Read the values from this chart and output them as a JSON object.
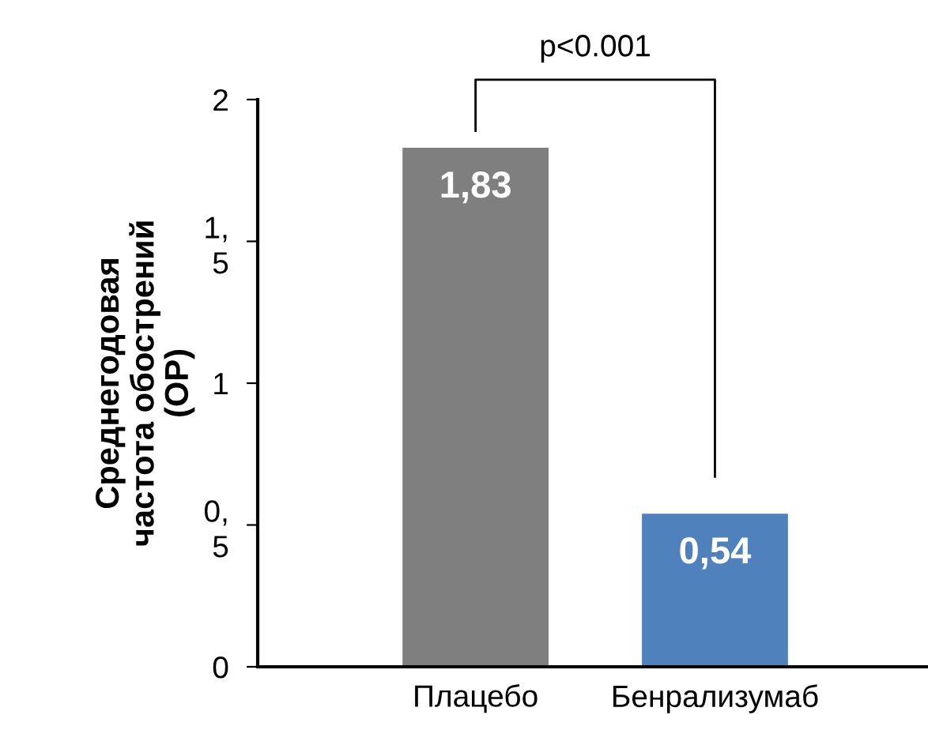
{
  "chart_data": {
    "type": "bar",
    "ylabel": "Среднегодовая\nчастота обострений\n(ОР)",
    "categories": [
      "Плацебо",
      "Бенрализумаб"
    ],
    "values": [
      1.83,
      0.54
    ],
    "colors": [
      "#7f7f7f",
      "#4f81bd"
    ],
    "value_labels": [
      "1,83",
      "0,54"
    ],
    "ylim": [
      0,
      2
    ],
    "yticks": [
      0,
      {
        "value": 0.5,
        "label": "0,\n5"
      },
      1,
      {
        "value": 1.5,
        "label": "1,\n5"
      },
      2
    ],
    "annotations": [
      "p<0.001"
    ],
    "grid": false,
    "legend": false
  }
}
